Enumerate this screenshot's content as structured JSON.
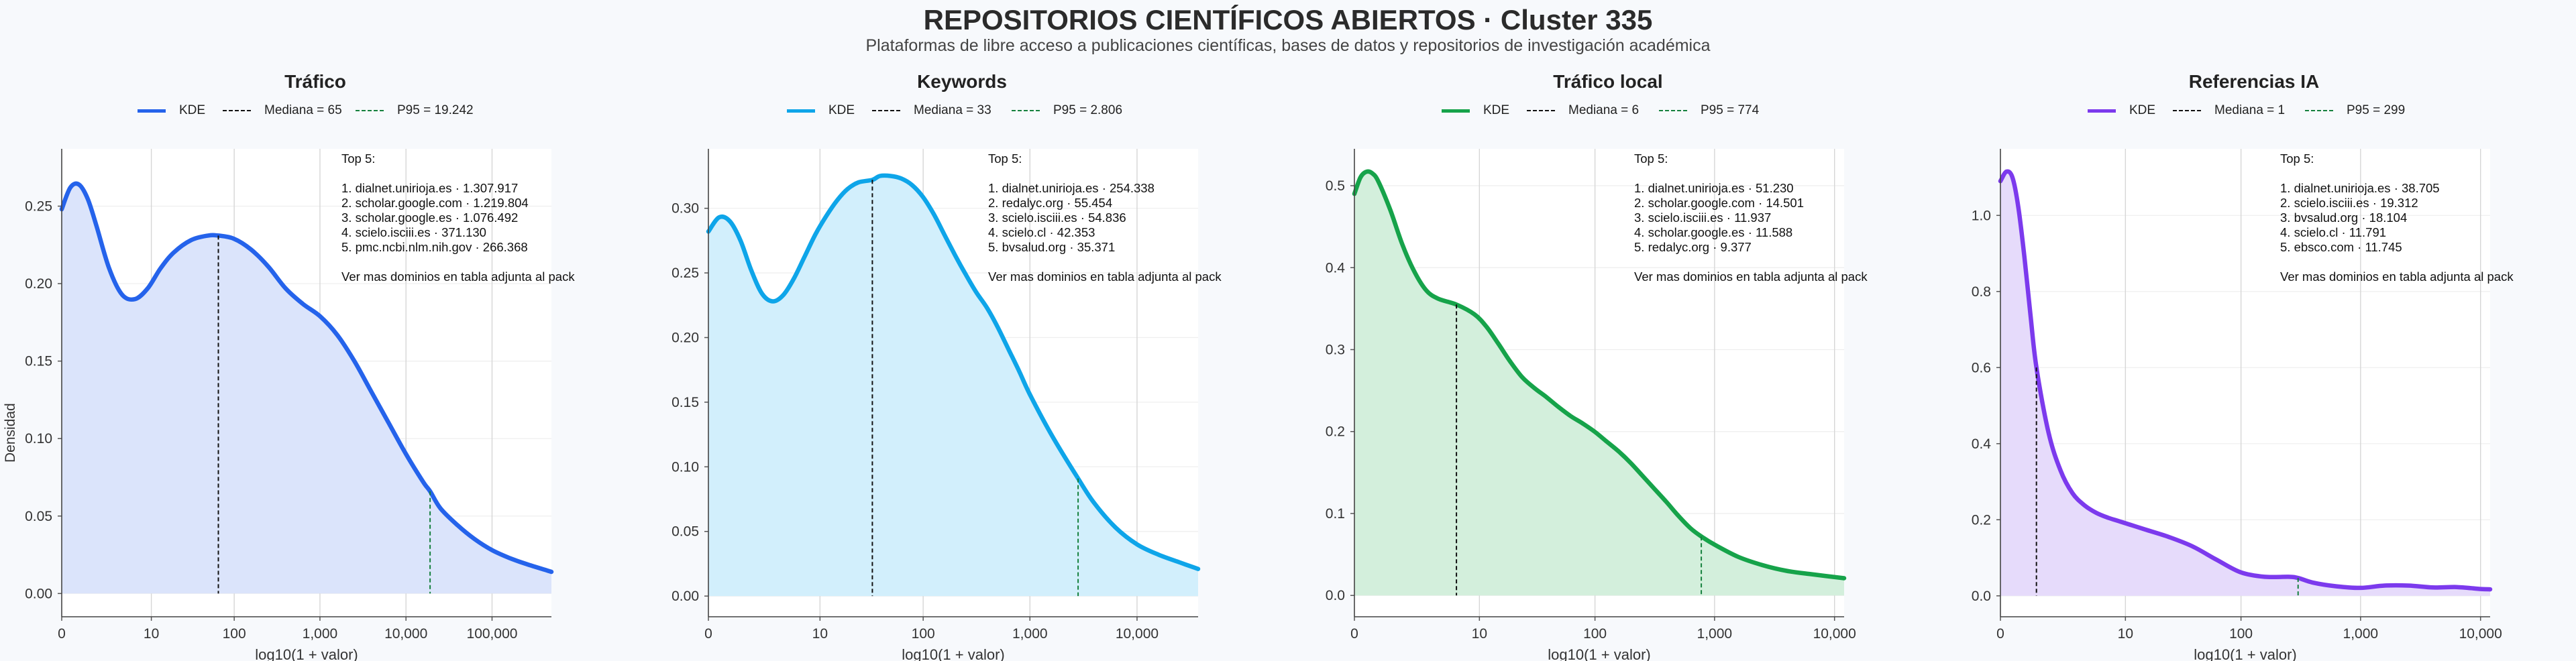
{
  "header": {
    "title": "REPOSITORIOS CIENTÍFICOS ABIERTOS · Cluster 335",
    "subtitle": "Plataformas de libre acceso a publicaciones científicas, bases de datos y repositorios de investigación académica"
  },
  "chart_data": [
    {
      "type": "area",
      "title": "Tráfico",
      "xlabel": "log10(1 + valor)",
      "ylabel": "Densidad",
      "color": "#2563eb",
      "fill": "#dbe4fb",
      "x_scale": "log10(1+x)",
      "x_ticks": [
        "0",
        "10",
        "100",
        "1,000",
        "10,000",
        "100,000"
      ],
      "y_ticks": [
        "0.00",
        "0.05",
        "0.10",
        "0.15",
        "0.20",
        "0.25"
      ],
      "xlim": [
        0,
        5.69
      ],
      "ylim": [
        -0.015,
        0.287
      ],
      "legend": {
        "kde": "KDE",
        "median": "Mediana = 65",
        "p95": "P95 = 19.242"
      },
      "median_log": 1.82,
      "p95_log": 4.28,
      "series": [
        {
          "name": "KDE",
          "x": [
            0,
            0.1,
            0.2,
            0.3,
            0.4,
            0.55,
            0.7,
            0.85,
            1.0,
            1.15,
            1.3,
            1.5,
            1.7,
            1.82,
            2.0,
            2.2,
            2.4,
            2.6,
            2.8,
            3.0,
            3.2,
            3.4,
            3.6,
            3.8,
            4.0,
            4.2,
            4.28,
            4.4,
            4.6,
            4.8,
            5.0,
            5.2,
            5.4,
            5.69
          ],
          "y": [
            0.248,
            0.262,
            0.264,
            0.255,
            0.238,
            0.21,
            0.193,
            0.19,
            0.197,
            0.21,
            0.22,
            0.228,
            0.231,
            0.231,
            0.229,
            0.222,
            0.211,
            0.197,
            0.187,
            0.179,
            0.167,
            0.15,
            0.13,
            0.11,
            0.09,
            0.072,
            0.066,
            0.055,
            0.044,
            0.035,
            0.028,
            0.023,
            0.019,
            0.014
          ]
        }
      ],
      "top": {
        "title": "Top 5:",
        "items": [
          "1. dialnet.unirioja.es · 1.307.917",
          "2. scholar.google.com · 1.219.804",
          "3. scholar.google.es · 1.076.492",
          "4. scielo.isciii.es · 371.130",
          "5. pmc.ncbi.nlm.nih.gov · 266.368"
        ],
        "note": "Ver mas dominios en tabla adjunta al pack"
      }
    },
    {
      "type": "area",
      "title": "Keywords",
      "xlabel": "log10(1 + valor)",
      "ylabel": "",
      "color": "#0ea5e9",
      "fill": "#d2effc",
      "x_scale": "log10(1+x)",
      "x_ticks": [
        "0",
        "10",
        "100",
        "1,000",
        "10,000"
      ],
      "y_ticks": [
        "0.00",
        "0.05",
        "0.10",
        "0.15",
        "0.20",
        "0.25",
        "0.30"
      ],
      "xlim": [
        0,
        4.57
      ],
      "ylim": [
        -0.016,
        0.346
      ],
      "legend": {
        "kde": "KDE",
        "median": "Mediana = 33",
        "p95": "P95 = 2.806"
      },
      "median_log": 1.53,
      "p95_log": 3.45,
      "series": [
        {
          "name": "KDE",
          "x": [
            0,
            0.1,
            0.2,
            0.3,
            0.4,
            0.5,
            0.6,
            0.7,
            0.8,
            0.9,
            1.0,
            1.1,
            1.2,
            1.3,
            1.4,
            1.53,
            1.6,
            1.7,
            1.8,
            1.9,
            2.0,
            2.1,
            2.2,
            2.3,
            2.4,
            2.5,
            2.6,
            2.7,
            2.8,
            2.9,
            3.0,
            3.2,
            3.45,
            3.6,
            3.8,
            4.0,
            4.2,
            4.4,
            4.57
          ],
          "y": [
            0.282,
            0.293,
            0.29,
            0.275,
            0.252,
            0.234,
            0.228,
            0.233,
            0.246,
            0.263,
            0.28,
            0.294,
            0.306,
            0.315,
            0.32,
            0.322,
            0.325,
            0.325,
            0.323,
            0.318,
            0.309,
            0.296,
            0.28,
            0.264,
            0.249,
            0.235,
            0.223,
            0.208,
            0.191,
            0.174,
            0.156,
            0.125,
            0.091,
            0.072,
            0.053,
            0.04,
            0.032,
            0.026,
            0.021
          ]
        }
      ],
      "top": {
        "title": "Top 5:",
        "items": [
          "1. dialnet.unirioja.es · 254.338",
          "2. redalyc.org · 55.454",
          "3. scielo.isciii.es · 54.836",
          "4. scielo.cl · 42.353",
          "5. bvsalud.org · 35.371"
        ],
        "note": "Ver mas dominios en tabla adjunta al pack"
      }
    },
    {
      "type": "area",
      "title": "Tráfico local",
      "xlabel": "log10(1 + valor)",
      "ylabel": "",
      "color": "#16a34a",
      "fill": "#d3efdc",
      "x_scale": "log10(1+x)",
      "x_ticks": [
        "0",
        "10",
        "100",
        "1,000",
        "10,000"
      ],
      "y_ticks": [
        "0.0",
        "0.1",
        "0.2",
        "0.3",
        "0.4",
        "0.5"
      ],
      "xlim": [
        0,
        4.08
      ],
      "ylim": [
        -0.026,
        0.545
      ],
      "legend": {
        "kde": "KDE",
        "median": "Mediana = 6",
        "p95": "P95 = 774"
      },
      "median_log": 0.85,
      "p95_log": 2.89,
      "series": [
        {
          "name": "KDE",
          "x": [
            0,
            0.05,
            0.1,
            0.15,
            0.2,
            0.3,
            0.4,
            0.5,
            0.6,
            0.7,
            0.85,
            1.0,
            1.1,
            1.2,
            1.3,
            1.4,
            1.5,
            1.6,
            1.7,
            1.8,
            1.9,
            2.0,
            2.1,
            2.2,
            2.3,
            2.4,
            2.5,
            2.6,
            2.7,
            2.8,
            2.89,
            3.0,
            3.2,
            3.4,
            3.6,
            3.8,
            4.08
          ],
          "y": [
            0.49,
            0.51,
            0.517,
            0.515,
            0.505,
            0.47,
            0.428,
            0.395,
            0.372,
            0.362,
            0.355,
            0.343,
            0.328,
            0.307,
            0.285,
            0.266,
            0.253,
            0.242,
            0.23,
            0.219,
            0.21,
            0.2,
            0.188,
            0.176,
            0.162,
            0.146,
            0.13,
            0.114,
            0.097,
            0.082,
            0.072,
            0.062,
            0.047,
            0.037,
            0.03,
            0.026,
            0.021
          ]
        }
      ],
      "top": {
        "title": "Top 5:",
        "items": [
          "1. dialnet.unirioja.es · 51.230",
          "2. scholar.google.com · 14.501",
          "3. scielo.isciii.es · 11.937",
          "4. scholar.google.es · 11.588",
          "5. redalyc.org · 9.377"
        ],
        "note": "Ver mas dominios en tabla adjunta al pack"
      }
    },
    {
      "type": "area",
      "title": "Referencias IA",
      "xlabel": "log10(1 + valor)",
      "ylabel": "",
      "color": "#7c3aed",
      "fill": "#e6dbfb",
      "x_scale": "log10(1+x)",
      "x_ticks": [
        "0",
        "10",
        "100",
        "1,000",
        "10,000"
      ],
      "y_ticks": [
        "0.0",
        "0.2",
        "0.4",
        "0.6",
        "0.8",
        "1.0"
      ],
      "xlim": [
        0,
        4.08
      ],
      "ylim": [
        -0.055,
        1.175
      ],
      "legend": {
        "kde": "KDE",
        "median": "Mediana = 1",
        "p95": "P95 = 299"
      },
      "median_log": 0.3,
      "p95_log": 2.48,
      "series": [
        {
          "name": "KDE",
          "x": [
            0,
            0.05,
            0.1,
            0.15,
            0.2,
            0.25,
            0.3,
            0.4,
            0.5,
            0.6,
            0.7,
            0.8,
            0.9,
            1.0,
            1.2,
            1.4,
            1.6,
            1.8,
            2.0,
            2.2,
            2.4,
            2.48,
            2.6,
            2.8,
            3.0,
            3.2,
            3.4,
            3.6,
            3.8,
            4.0,
            4.08
          ],
          "y": [
            1.09,
            1.115,
            1.1,
            1.02,
            0.89,
            0.74,
            0.6,
            0.43,
            0.33,
            0.27,
            0.238,
            0.218,
            0.205,
            0.195,
            0.175,
            0.155,
            0.13,
            0.095,
            0.062,
            0.05,
            0.05,
            0.047,
            0.035,
            0.025,
            0.021,
            0.027,
            0.027,
            0.022,
            0.023,
            0.018,
            0.017
          ]
        }
      ],
      "top": {
        "title": "Top 5:",
        "items": [
          "1. dialnet.unirioja.es · 38.705",
          "2. scielo.isciii.es · 19.312",
          "3. bvsalud.org · 18.104",
          "4. scielo.cl · 11.791",
          "5. ebsco.com · 11.745"
        ],
        "note": "Ver mas dominios en tabla adjunta al pack"
      }
    }
  ]
}
